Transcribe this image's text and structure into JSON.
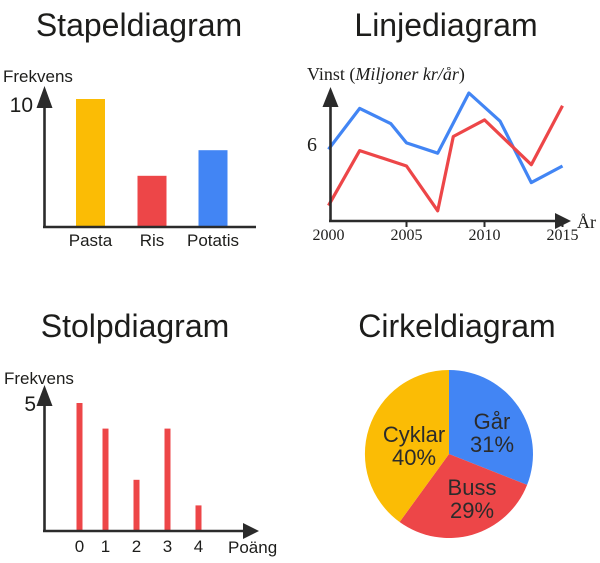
{
  "page": {
    "background": "#ffffff",
    "accent_colors": {
      "yellow": "#FBBC05",
      "red": "#ED4648",
      "blue": "#4285F4"
    }
  },
  "chart_data": [
    {
      "type": "bar",
      "title": "Stapeldiagram",
      "ylabel": "Frekvens",
      "xlabel": "",
      "y_tick_label": "10",
      "ylim": [
        0,
        10
      ],
      "grid": false,
      "categories": [
        "Pasta",
        "Ris",
        "Potatis"
      ],
      "values": [
        10,
        4,
        6
      ],
      "bar_colors": [
        "#FBBC05",
        "#ED4648",
        "#4285F4"
      ]
    },
    {
      "type": "line",
      "title": "Linjediagram",
      "ylabel_prefix": "Vinst (",
      "ylabel_italic": "Miljoner kr/år",
      "ylabel_suffix": ")",
      "xlabel": "År",
      "y_tick_label": "6",
      "y_tick_value": 6,
      "x_ticks": [
        2000,
        2005,
        2010,
        2015
      ],
      "xlim": [
        2000,
        2015
      ],
      "ylim": [
        0,
        10.5
      ],
      "grid": false,
      "legend": "none",
      "series": [
        {
          "name": "bla-linje",
          "color": "#4285F4",
          "points": [
            [
              2000,
              5.6
            ],
            [
              2002,
              8.8
            ],
            [
              2004,
              7.6
            ],
            [
              2005,
              6.1
            ],
            [
              2007,
              5.3
            ],
            [
              2009,
              10
            ],
            [
              2011,
              7.8
            ],
            [
              2013,
              3.0
            ],
            [
              2015,
              4.3
            ]
          ]
        },
        {
          "name": "rod-linje",
          "color": "#ED4648",
          "points": [
            [
              2000,
              1.2
            ],
            [
              2002,
              5.5
            ],
            [
              2005,
              4.3
            ],
            [
              2007,
              0.8
            ],
            [
              2008,
              6.6
            ],
            [
              2010,
              7.9
            ],
            [
              2013,
              4.4
            ],
            [
              2015,
              9.0
            ]
          ]
        }
      ]
    },
    {
      "type": "bar",
      "title": "Stolpdiagram",
      "ylabel": "Frekvens",
      "xlabel": "Poäng",
      "y_tick_label": "5",
      "ylim": [
        0,
        5
      ],
      "grid": false,
      "categories": [
        "0",
        "1",
        "2",
        "3",
        "4"
      ],
      "values": [
        5,
        4,
        2,
        4,
        1
      ],
      "bar_color": "#ED4648"
    },
    {
      "type": "pie",
      "title": "Cirkeldiagram",
      "start_angle": "top",
      "direction": "clockwise",
      "slices": [
        {
          "label": "Går",
          "pct": 31,
          "color": "#4285F4"
        },
        {
          "label": "Buss",
          "pct": 29,
          "color": "#ED4648"
        },
        {
          "label": "Cyklar",
          "pct": 40,
          "color": "#FBBC05"
        }
      ]
    }
  ]
}
